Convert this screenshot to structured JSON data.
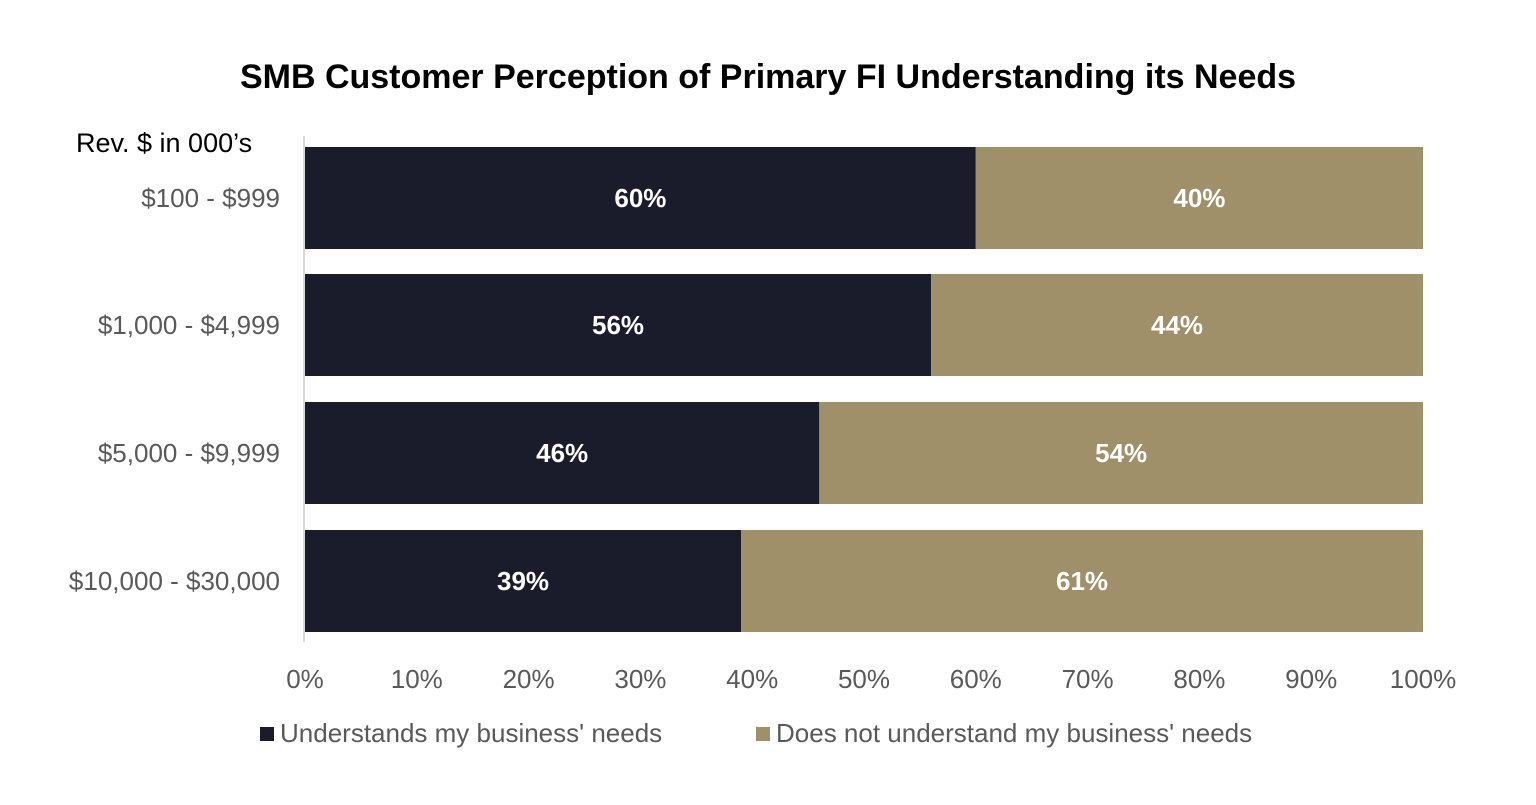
{
  "chart_data": {
    "type": "bar",
    "orientation": "horizontal",
    "stacked": true,
    "title": "SMB Customer Perception of Primary FI Understanding its Needs",
    "ylabel": "Rev. $ in 000’s",
    "xlabel": "",
    "categories": [
      "$100 - $999",
      "$1,000 - $4,999",
      "$5,000 - $9,999",
      "$10,000 - $30,000"
    ],
    "series": [
      {
        "name": "Understands my business' needs",
        "color": "#1a1b2b",
        "values": [
          60,
          56,
          46,
          39
        ]
      },
      {
        "name": "Does not understand my business' needs",
        "color": "#a0906a",
        "values": [
          40,
          44,
          54,
          61
        ]
      }
    ],
    "xlim": [
      0,
      100
    ],
    "xticks": [
      "0%",
      "10%",
      "20%",
      "30%",
      "40%",
      "50%",
      "60%",
      "70%",
      "80%",
      "90%",
      "100%"
    ],
    "grid": false,
    "legend_position": "bottom"
  }
}
